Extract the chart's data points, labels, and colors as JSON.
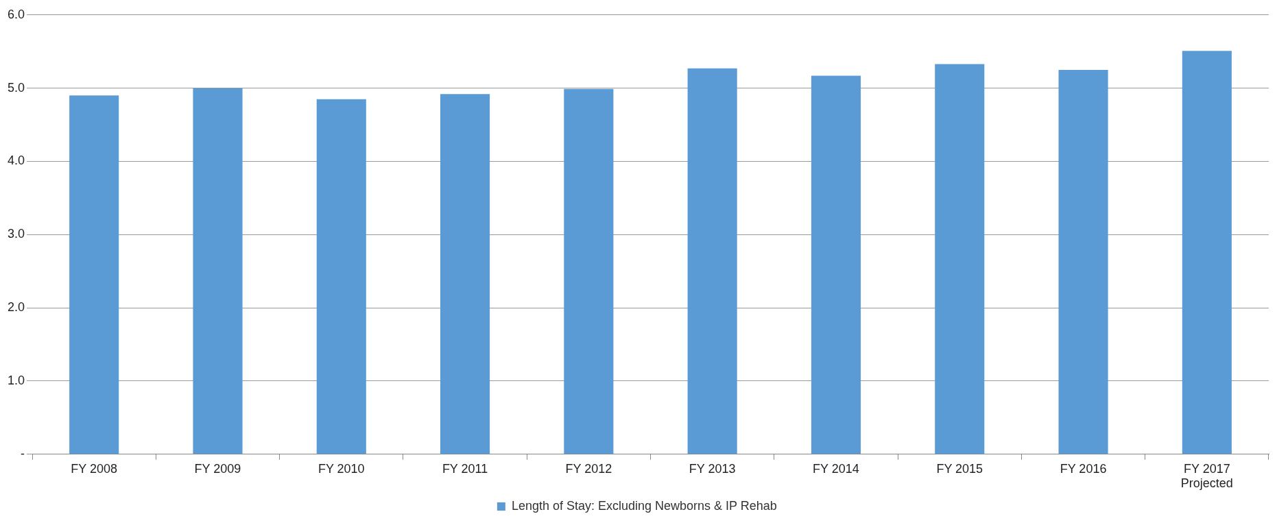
{
  "chart_data": {
    "type": "bar",
    "categories": [
      "FY 2008",
      "FY 2009",
      "FY 2010",
      "FY 2011",
      "FY 2012",
      "FY 2013",
      "FY 2014",
      "FY 2015",
      "FY 2016",
      "FY 2017\nProjected"
    ],
    "series": [
      {
        "name": "Length of Stay: Excluding Newborns & IP Rehab",
        "color": "#5b9bd5",
        "values": [
          4.9,
          5.0,
          4.85,
          4.92,
          4.99,
          5.27,
          5.17,
          5.33,
          5.25,
          5.51
        ]
      }
    ],
    "ylim": [
      0,
      6
    ],
    "yticks": [
      {
        "value": 0,
        "label": "-"
      },
      {
        "value": 1,
        "label": "1.0"
      },
      {
        "value": 2,
        "label": "2.0"
      },
      {
        "value": 3,
        "label": "3.0"
      },
      {
        "value": 4,
        "label": "4.0"
      },
      {
        "value": 5,
        "label": "5.0"
      },
      {
        "value": 6,
        "label": "6.0"
      }
    ],
    "grid": "y",
    "legend": "bottom"
  }
}
